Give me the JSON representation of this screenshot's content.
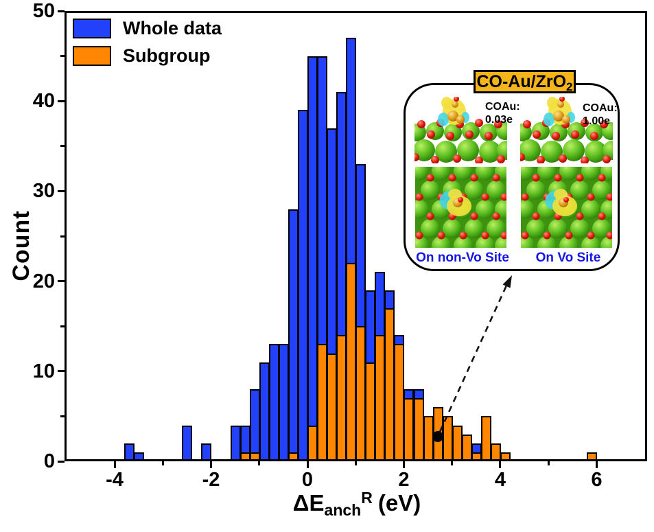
{
  "chart_data": {
    "type": "bar",
    "subtype": "overlaid-histogram",
    "title": "",
    "xlabel": "ΔE_anch^R (eV)",
    "ylabel": "Count",
    "xlim": [
      -5,
      7
    ],
    "ylim": [
      0,
      50
    ],
    "bin_width_ev": 0.2,
    "grid": false,
    "legend_position": "top-left",
    "x_major_ticks": [
      -4,
      -2,
      0,
      2,
      4,
      6
    ],
    "x_minor_ticks": [
      -3,
      -1,
      1,
      3,
      5
    ],
    "y_major_ticks": [
      0,
      10,
      20,
      30,
      40,
      50
    ],
    "y_minor_ticks": [
      5,
      15,
      25,
      35,
      45
    ],
    "series": [
      {
        "name": "Whole data",
        "color": "#2340FB"
      },
      {
        "name": "Subgroup",
        "color": "#FF8603"
      }
    ],
    "bins": [
      {
        "center": -3.7,
        "whole_data": 2,
        "subgroup": 0
      },
      {
        "center": -3.5,
        "whole_data": 1,
        "subgroup": 0
      },
      {
        "center": -2.5,
        "whole_data": 4,
        "subgroup": 0
      },
      {
        "center": -2.1,
        "whole_data": 2,
        "subgroup": 0
      },
      {
        "center": -1.5,
        "whole_data": 4,
        "subgroup": 0
      },
      {
        "center": -1.3,
        "whole_data": 4,
        "subgroup": 1
      },
      {
        "center": -1.1,
        "whole_data": 8,
        "subgroup": 1
      },
      {
        "center": -0.9,
        "whole_data": 11,
        "subgroup": 0
      },
      {
        "center": -0.7,
        "whole_data": 13,
        "subgroup": 0
      },
      {
        "center": -0.5,
        "whole_data": 13,
        "subgroup": 0
      },
      {
        "center": -0.3,
        "whole_data": 28,
        "subgroup": 1
      },
      {
        "center": -0.1,
        "whole_data": 39,
        "subgroup": 0
      },
      {
        "center": 0.1,
        "whole_data": 45,
        "subgroup": 4
      },
      {
        "center": 0.3,
        "whole_data": 45,
        "subgroup": 13
      },
      {
        "center": 0.5,
        "whole_data": 37,
        "subgroup": 12
      },
      {
        "center": 0.7,
        "whole_data": 41,
        "subgroup": 14
      },
      {
        "center": 0.9,
        "whole_data": 47,
        "subgroup": 22
      },
      {
        "center": 1.1,
        "whole_data": 33,
        "subgroup": 15
      },
      {
        "center": 1.3,
        "whole_data": 19,
        "subgroup": 11
      },
      {
        "center": 1.5,
        "whole_data": 21,
        "subgroup": 14
      },
      {
        "center": 1.7,
        "whole_data": 19,
        "subgroup": 17
      },
      {
        "center": 1.9,
        "whole_data": 14,
        "subgroup": 13
      },
      {
        "center": 2.1,
        "whole_data": 8,
        "subgroup": 7
      },
      {
        "center": 2.3,
        "whole_data": 8,
        "subgroup": 7
      },
      {
        "center": 2.5,
        "whole_data": 5,
        "subgroup": 5
      },
      {
        "center": 2.7,
        "whole_data": 6,
        "subgroup": 6
      },
      {
        "center": 2.9,
        "whole_data": 5,
        "subgroup": 5
      },
      {
        "center": 3.1,
        "whole_data": 4,
        "subgroup": 4
      },
      {
        "center": 3.3,
        "whole_data": 3,
        "subgroup": 3
      },
      {
        "center": 3.5,
        "whole_data": 2,
        "subgroup": 1
      },
      {
        "center": 3.7,
        "whole_data": 5,
        "subgroup": 5
      },
      {
        "center": 3.9,
        "whole_data": 2,
        "subgroup": 2
      },
      {
        "center": 4.1,
        "whole_data": 1,
        "subgroup": 1
      },
      {
        "center": 5.9,
        "whole_data": 1,
        "subgroup": 1
      }
    ],
    "annotation": {
      "dot_x_ev": 2.7,
      "dot_count": 2.7,
      "arrow_target": "inset"
    }
  },
  "legend": {
    "items": [
      {
        "label": "Whole data",
        "color": "#2340FB"
      },
      {
        "label": "Subgroup",
        "color": "#FF8603"
      }
    ]
  },
  "axes": {
    "ylabel": "Count",
    "xlabel_main": "ΔE",
    "xlabel_sub": "anch",
    "xlabel_sup": "R",
    "xlabel_unit": "(eV)"
  },
  "inset": {
    "title_main": "CO-Au/ZrO",
    "title_sub": "2",
    "title_bg": "#F5B51A",
    "site_label_color": "#1414E8",
    "panels": [
      {
        "charge_label": "COAu:",
        "charge_value": "0.03e",
        "site_label": "On non-Vo Site"
      },
      {
        "charge_label": "COAu:",
        "charge_value": "1.00e",
        "site_label": "On Vo Site"
      }
    ]
  },
  "colors": {
    "whole_data_bar": "#2340FB",
    "subgroup_bar": "#FF8603",
    "axis": "#000000",
    "atom_green": "#4CB818",
    "atom_red": "#E8190F",
    "atom_gold": "#E8A01E",
    "isosurface_yellow": "#F2E03C",
    "isosurface_cyan": "#45D6E8"
  }
}
